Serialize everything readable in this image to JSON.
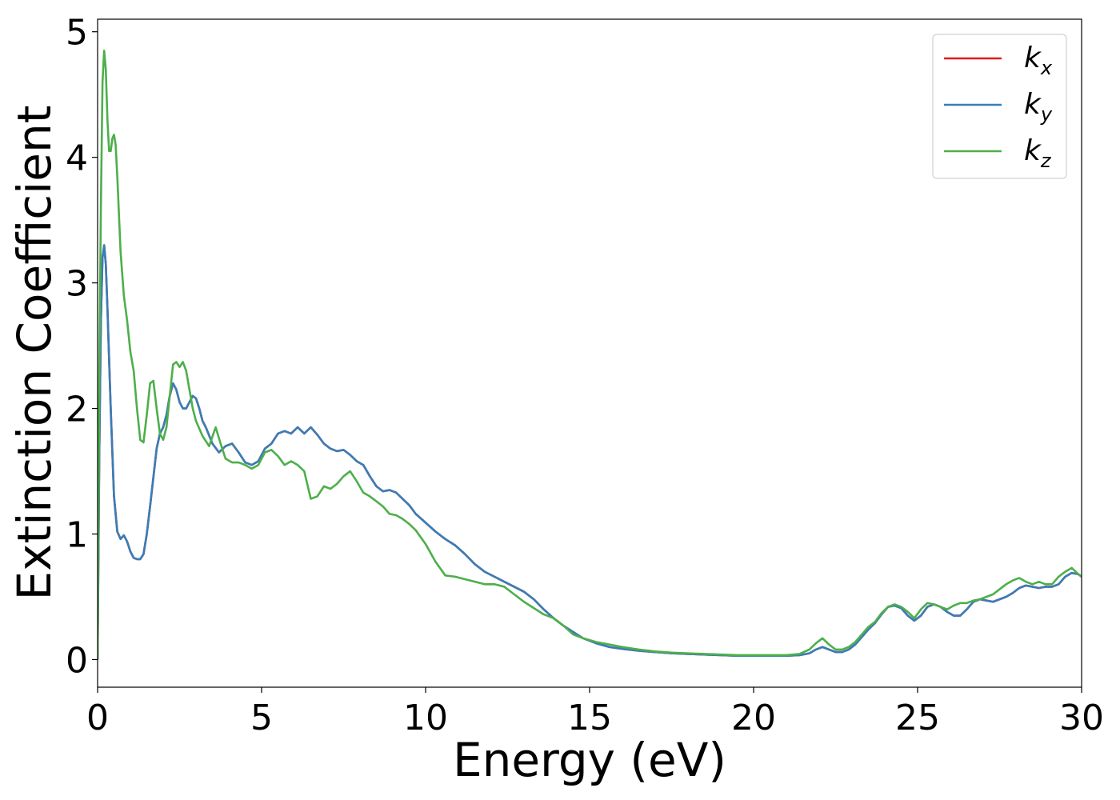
{
  "chart_data": {
    "type": "line",
    "title": "",
    "xlabel": "Energy (eV)",
    "ylabel": "Extinction Coefficient",
    "xlim": [
      0,
      30
    ],
    "ylim": [
      -0.22,
      5.1
    ],
    "xticks": [
      0,
      5,
      10,
      15,
      20,
      25,
      30
    ],
    "xtick_labels": [
      "0",
      "5",
      "10",
      "15",
      "20",
      "25",
      "30"
    ],
    "yticks": [
      0,
      1,
      2,
      3,
      4,
      5
    ],
    "ytick_labels": [
      "0",
      "1",
      "2",
      "3",
      "4",
      "5"
    ],
    "grid": false,
    "legend": {
      "position": "top-right"
    },
    "series": [
      {
        "name": "k",
        "subscript": "x",
        "color": "#e41a1c",
        "x": [
          0,
          0.05,
          0.1,
          0.15,
          0.2,
          0.25,
          0.3,
          0.4,
          0.5,
          0.6,
          0.7,
          0.8,
          0.9,
          1.0,
          1.1,
          1.2,
          1.3,
          1.4,
          1.5,
          1.6,
          1.7,
          1.8,
          1.9,
          2.0,
          2.1,
          2.2,
          2.3,
          2.4,
          2.5,
          2.6,
          2.7,
          2.8,
          2.9,
          3.0,
          3.1,
          3.2,
          3.3,
          3.5,
          3.7,
          3.9,
          4.1,
          4.3,
          4.5,
          4.7,
          4.9,
          5.1,
          5.3,
          5.5,
          5.7,
          5.9,
          6.1,
          6.3,
          6.5,
          6.7,
          6.9,
          7.1,
          7.3,
          7.5,
          7.7,
          7.9,
          8.1,
          8.3,
          8.5,
          8.7,
          8.9,
          9.1,
          9.3,
          9.5,
          9.7,
          10.0,
          10.3,
          10.6,
          10.9,
          11.2,
          11.5,
          11.8,
          12.1,
          12.4,
          12.7,
          13.0,
          13.3,
          13.6,
          13.9,
          14.2,
          14.5,
          14.8,
          15.2,
          15.6,
          16.0,
          16.5,
          17.0,
          17.5,
          18.0,
          18.5,
          19.0,
          19.5,
          20.0,
          20.5,
          21.0,
          21.4,
          21.7,
          21.9,
          22.1,
          22.3,
          22.5,
          22.7,
          22.9,
          23.1,
          23.3,
          23.5,
          23.7,
          23.9,
          24.1,
          24.3,
          24.5,
          24.7,
          24.9,
          25.1,
          25.3,
          25.5,
          25.7,
          25.9,
          26.1,
          26.3,
          26.5,
          26.7,
          26.9,
          27.1,
          27.3,
          27.5,
          27.7,
          27.9,
          28.1,
          28.3,
          28.5,
          28.7,
          28.9,
          29.1,
          29.3,
          29.5,
          29.7,
          29.9,
          30.0
        ],
        "y": [
          0,
          1.6,
          2.7,
          3.2,
          3.3,
          3.15,
          2.8,
          2.0,
          1.3,
          1.02,
          0.96,
          0.99,
          0.94,
          0.86,
          0.81,
          0.8,
          0.8,
          0.84,
          1.0,
          1.22,
          1.45,
          1.68,
          1.8,
          1.85,
          1.95,
          2.1,
          2.2,
          2.15,
          2.05,
          2.0,
          2.0,
          2.05,
          2.1,
          2.08,
          2.0,
          1.9,
          1.85,
          1.72,
          1.65,
          1.7,
          1.72,
          1.65,
          1.57,
          1.55,
          1.58,
          1.68,
          1.72,
          1.8,
          1.82,
          1.8,
          1.85,
          1.8,
          1.85,
          1.79,
          1.72,
          1.68,
          1.66,
          1.67,
          1.63,
          1.58,
          1.55,
          1.46,
          1.38,
          1.34,
          1.35,
          1.33,
          1.28,
          1.23,
          1.16,
          1.09,
          1.02,
          0.96,
          0.91,
          0.84,
          0.76,
          0.7,
          0.66,
          0.62,
          0.58,
          0.54,
          0.48,
          0.4,
          0.33,
          0.27,
          0.22,
          0.17,
          0.13,
          0.1,
          0.085,
          0.07,
          0.06,
          0.05,
          0.045,
          0.04,
          0.035,
          0.03,
          0.03,
          0.03,
          0.03,
          0.035,
          0.05,
          0.08,
          0.1,
          0.08,
          0.06,
          0.06,
          0.08,
          0.12,
          0.18,
          0.24,
          0.29,
          0.36,
          0.42,
          0.43,
          0.41,
          0.35,
          0.31,
          0.35,
          0.42,
          0.44,
          0.42,
          0.38,
          0.35,
          0.35,
          0.4,
          0.46,
          0.48,
          0.47,
          0.46,
          0.48,
          0.5,
          0.53,
          0.57,
          0.59,
          0.58,
          0.57,
          0.58,
          0.58,
          0.6,
          0.66,
          0.69,
          0.68,
          0.66
        ]
      },
      {
        "name": "k",
        "subscript": "y",
        "color": "#377eb8",
        "x": [
          0,
          0.05,
          0.1,
          0.15,
          0.2,
          0.25,
          0.3,
          0.4,
          0.5,
          0.6,
          0.7,
          0.8,
          0.9,
          1.0,
          1.1,
          1.2,
          1.3,
          1.4,
          1.5,
          1.6,
          1.7,
          1.8,
          1.9,
          2.0,
          2.1,
          2.2,
          2.3,
          2.4,
          2.5,
          2.6,
          2.7,
          2.8,
          2.9,
          3.0,
          3.1,
          3.2,
          3.3,
          3.5,
          3.7,
          3.9,
          4.1,
          4.3,
          4.5,
          4.7,
          4.9,
          5.1,
          5.3,
          5.5,
          5.7,
          5.9,
          6.1,
          6.3,
          6.5,
          6.7,
          6.9,
          7.1,
          7.3,
          7.5,
          7.7,
          7.9,
          8.1,
          8.3,
          8.5,
          8.7,
          8.9,
          9.1,
          9.3,
          9.5,
          9.7,
          10.0,
          10.3,
          10.6,
          10.9,
          11.2,
          11.5,
          11.8,
          12.1,
          12.4,
          12.7,
          13.0,
          13.3,
          13.6,
          13.9,
          14.2,
          14.5,
          14.8,
          15.2,
          15.6,
          16.0,
          16.5,
          17.0,
          17.5,
          18.0,
          18.5,
          19.0,
          19.5,
          20.0,
          20.5,
          21.0,
          21.4,
          21.7,
          21.9,
          22.1,
          22.3,
          22.5,
          22.7,
          22.9,
          23.1,
          23.3,
          23.5,
          23.7,
          23.9,
          24.1,
          24.3,
          24.5,
          24.7,
          24.9,
          25.1,
          25.3,
          25.5,
          25.7,
          25.9,
          26.1,
          26.3,
          26.5,
          26.7,
          26.9,
          27.1,
          27.3,
          27.5,
          27.7,
          27.9,
          28.1,
          28.3,
          28.5,
          28.7,
          28.9,
          29.1,
          29.3,
          29.5,
          29.7,
          29.9,
          30.0
        ],
        "y": [
          0,
          1.6,
          2.7,
          3.2,
          3.3,
          3.15,
          2.8,
          2.0,
          1.3,
          1.02,
          0.96,
          0.99,
          0.94,
          0.86,
          0.81,
          0.8,
          0.8,
          0.84,
          1.0,
          1.22,
          1.45,
          1.68,
          1.8,
          1.85,
          1.95,
          2.1,
          2.2,
          2.15,
          2.05,
          2.0,
          2.0,
          2.05,
          2.1,
          2.08,
          2.0,
          1.9,
          1.85,
          1.72,
          1.65,
          1.7,
          1.72,
          1.65,
          1.57,
          1.55,
          1.58,
          1.68,
          1.72,
          1.8,
          1.82,
          1.8,
          1.85,
          1.8,
          1.85,
          1.79,
          1.72,
          1.68,
          1.66,
          1.67,
          1.63,
          1.58,
          1.55,
          1.46,
          1.38,
          1.34,
          1.35,
          1.33,
          1.28,
          1.23,
          1.16,
          1.09,
          1.02,
          0.96,
          0.91,
          0.84,
          0.76,
          0.7,
          0.66,
          0.62,
          0.58,
          0.54,
          0.48,
          0.4,
          0.33,
          0.27,
          0.22,
          0.17,
          0.13,
          0.1,
          0.085,
          0.07,
          0.06,
          0.05,
          0.045,
          0.04,
          0.035,
          0.03,
          0.03,
          0.03,
          0.03,
          0.035,
          0.05,
          0.08,
          0.1,
          0.08,
          0.06,
          0.06,
          0.08,
          0.12,
          0.18,
          0.24,
          0.29,
          0.36,
          0.42,
          0.43,
          0.41,
          0.35,
          0.31,
          0.35,
          0.42,
          0.44,
          0.42,
          0.38,
          0.35,
          0.35,
          0.4,
          0.46,
          0.48,
          0.47,
          0.46,
          0.48,
          0.5,
          0.53,
          0.57,
          0.59,
          0.58,
          0.57,
          0.58,
          0.58,
          0.6,
          0.66,
          0.69,
          0.68,
          0.66
        ]
      },
      {
        "name": "k",
        "subscript": "z",
        "color": "#4daf4a",
        "x": [
          0,
          0.05,
          0.1,
          0.15,
          0.2,
          0.25,
          0.3,
          0.35,
          0.4,
          0.45,
          0.5,
          0.55,
          0.6,
          0.7,
          0.8,
          0.9,
          1.0,
          1.1,
          1.2,
          1.3,
          1.4,
          1.5,
          1.6,
          1.7,
          1.8,
          1.9,
          2.0,
          2.1,
          2.2,
          2.3,
          2.4,
          2.5,
          2.6,
          2.7,
          2.8,
          2.9,
          3.0,
          3.2,
          3.4,
          3.6,
          3.75,
          3.9,
          4.1,
          4.3,
          4.5,
          4.7,
          4.9,
          5.1,
          5.3,
          5.5,
          5.7,
          5.9,
          6.1,
          6.3,
          6.5,
          6.7,
          6.9,
          7.1,
          7.3,
          7.5,
          7.7,
          7.9,
          8.1,
          8.3,
          8.5,
          8.7,
          8.9,
          9.1,
          9.3,
          9.5,
          9.7,
          10.0,
          10.3,
          10.6,
          10.9,
          11.2,
          11.5,
          11.8,
          12.1,
          12.4,
          12.7,
          13.0,
          13.3,
          13.6,
          13.9,
          14.2,
          14.5,
          14.8,
          15.2,
          15.6,
          16.0,
          16.5,
          17.0,
          17.5,
          18.0,
          18.5,
          19.0,
          19.5,
          20.0,
          20.5,
          21.0,
          21.4,
          21.7,
          21.9,
          22.1,
          22.3,
          22.5,
          22.7,
          22.9,
          23.1,
          23.3,
          23.5,
          23.7,
          23.9,
          24.1,
          24.3,
          24.5,
          24.7,
          24.9,
          25.1,
          25.3,
          25.5,
          25.7,
          25.9,
          26.1,
          26.3,
          26.5,
          26.7,
          26.9,
          27.1,
          27.3,
          27.5,
          27.7,
          27.9,
          28.1,
          28.3,
          28.5,
          28.7,
          28.9,
          29.1,
          29.3,
          29.5,
          29.7,
          29.9,
          30.0
        ],
        "y": [
          0,
          2.2,
          3.6,
          4.6,
          4.85,
          4.7,
          4.3,
          4.05,
          4.05,
          4.15,
          4.18,
          4.1,
          3.85,
          3.25,
          2.9,
          2.7,
          2.45,
          2.3,
          2.0,
          1.75,
          1.73,
          1.95,
          2.2,
          2.22,
          2.0,
          1.8,
          1.75,
          1.85,
          2.1,
          2.35,
          2.37,
          2.33,
          2.37,
          2.3,
          2.15,
          2.0,
          1.9,
          1.78,
          1.7,
          1.85,
          1.72,
          1.6,
          1.57,
          1.57,
          1.55,
          1.52,
          1.55,
          1.65,
          1.67,
          1.62,
          1.55,
          1.58,
          1.55,
          1.5,
          1.28,
          1.3,
          1.38,
          1.36,
          1.4,
          1.46,
          1.5,
          1.42,
          1.33,
          1.3,
          1.26,
          1.22,
          1.16,
          1.15,
          1.12,
          1.08,
          1.03,
          0.92,
          0.78,
          0.67,
          0.66,
          0.64,
          0.62,
          0.6,
          0.6,
          0.58,
          0.52,
          0.46,
          0.41,
          0.36,
          0.33,
          0.27,
          0.2,
          0.17,
          0.14,
          0.12,
          0.1,
          0.08,
          0.065,
          0.055,
          0.05,
          0.045,
          0.04,
          0.035,
          0.035,
          0.035,
          0.035,
          0.045,
          0.08,
          0.13,
          0.17,
          0.12,
          0.08,
          0.08,
          0.1,
          0.14,
          0.2,
          0.26,
          0.3,
          0.37,
          0.42,
          0.44,
          0.42,
          0.38,
          0.33,
          0.4,
          0.45,
          0.44,
          0.42,
          0.4,
          0.43,
          0.45,
          0.45,
          0.47,
          0.48,
          0.5,
          0.52,
          0.56,
          0.6,
          0.63,
          0.65,
          0.62,
          0.6,
          0.62,
          0.6,
          0.6,
          0.66,
          0.7,
          0.73,
          0.68,
          0.66
        ]
      }
    ]
  }
}
